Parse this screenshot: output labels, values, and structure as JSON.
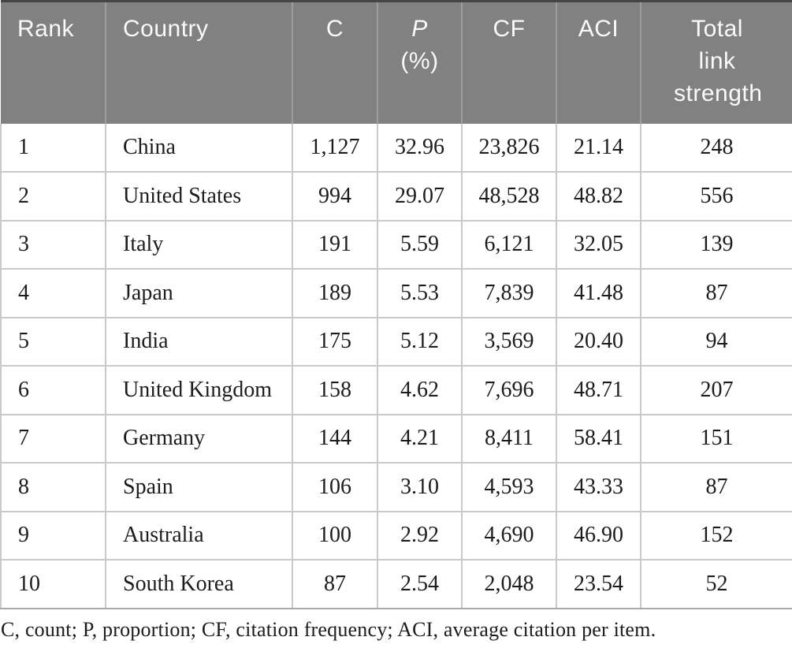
{
  "table": {
    "columns": [
      {
        "key": "rank",
        "label": "Rank"
      },
      {
        "key": "country",
        "label": "Country"
      },
      {
        "key": "c",
        "label": "C"
      },
      {
        "key": "p",
        "label": "P",
        "label2": "(%)"
      },
      {
        "key": "cf",
        "label": "CF"
      },
      {
        "key": "aci",
        "label": "ACI"
      },
      {
        "key": "tls",
        "label": "Total link strength"
      }
    ],
    "rows": [
      [
        "1",
        "China",
        "1,127",
        "32.96",
        "23,826",
        "21.14",
        "248"
      ],
      [
        "2",
        "United States",
        "994",
        "29.07",
        "48,528",
        "48.82",
        "556"
      ],
      [
        "3",
        "Italy",
        "191",
        "5.59",
        "6,121",
        "32.05",
        "139"
      ],
      [
        "4",
        "Japan",
        "189",
        "5.53",
        "7,839",
        "41.48",
        "87"
      ],
      [
        "5",
        "India",
        "175",
        "5.12",
        "3,569",
        "20.40",
        "94"
      ],
      [
        "6",
        "United Kingdom",
        "158",
        "4.62",
        "7,696",
        "48.71",
        "207"
      ],
      [
        "7",
        "Germany",
        "144",
        "4.21",
        "8,411",
        "58.41",
        "151"
      ],
      [
        "8",
        "Spain",
        "106",
        "3.10",
        "4,593",
        "43.33",
        "87"
      ],
      [
        "9",
        "Australia",
        "100",
        "2.92",
        "4,690",
        "46.90",
        "152"
      ],
      [
        "10",
        "South Korea",
        "87",
        "2.54",
        "2,048",
        "23.54",
        "52"
      ]
    ],
    "footnote": "C, count; P, proportion; CF, citation frequency; ACI, average citation per item."
  },
  "colors": {
    "header_bg": "#818181",
    "header_text": "#fafafa",
    "header_divider": "#9d9d9d",
    "top_border": "#454545",
    "grid": "#c9c9c9",
    "bottom_border": "#a9a9a9",
    "body_text": "#1c1c1c"
  }
}
